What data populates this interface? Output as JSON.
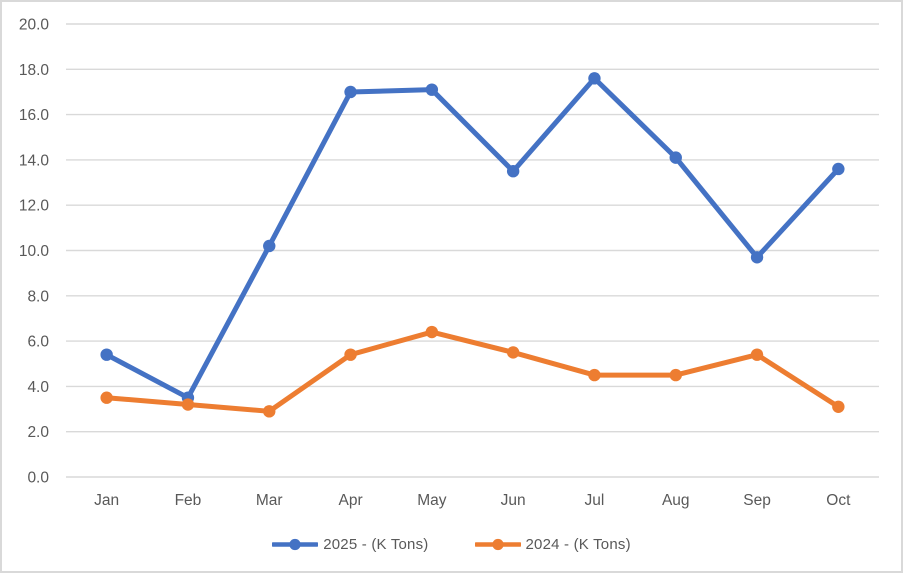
{
  "chart_data": {
    "type": "line",
    "title": "",
    "xlabel": "",
    "ylabel": "",
    "categories": [
      "Jan",
      "Feb",
      "Mar",
      "Apr",
      "May",
      "Jun",
      "Jul",
      "Aug",
      "Sep",
      "Oct"
    ],
    "series": [
      {
        "name": "2025 - (K Tons)",
        "color": "#4472C4",
        "values": [
          5.4,
          3.5,
          10.2,
          17.0,
          17.1,
          13.5,
          17.6,
          14.1,
          9.7,
          13.6
        ]
      },
      {
        "name": "2024 - (K Tons)",
        "color": "#ED7D31",
        "values": [
          3.5,
          3.2,
          2.9,
          5.4,
          6.4,
          5.5,
          4.5,
          4.5,
          5.4,
          3.1
        ]
      }
    ],
    "ylim": [
      0,
      20
    ],
    "y_tick_step": 2,
    "y_tick_labels": [
      "0.0",
      "2.0",
      "4.0",
      "6.0",
      "8.0",
      "10.0",
      "12.0",
      "14.0",
      "16.0",
      "18.0",
      "20.0"
    ],
    "grid": true,
    "marker": "circle",
    "legend_position": "bottom-center"
  },
  "colors": {
    "gridline": "#d9d9d9",
    "axis_text": "#595959",
    "background": "#ffffff",
    "frame_border": "#d9d9d9"
  }
}
